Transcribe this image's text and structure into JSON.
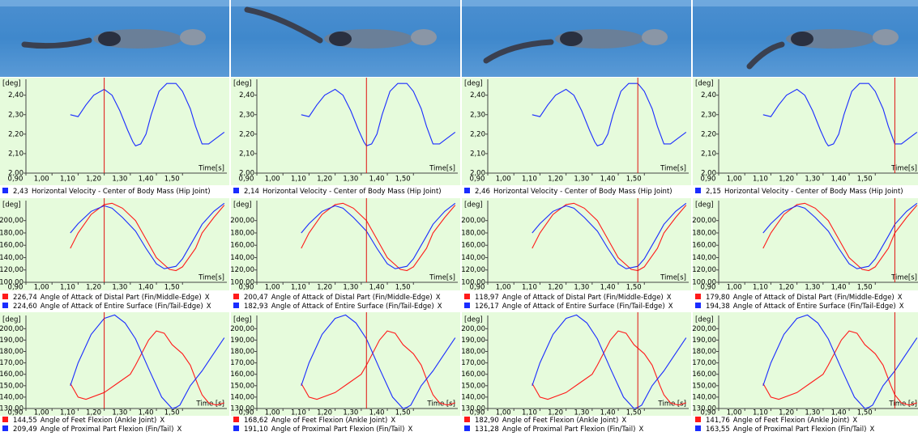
{
  "chart_data": [
    {
      "type": "line",
      "y_label": "[deg]",
      "x_label": "Time[s]",
      "xlim": [
        0.9,
        1.67
      ],
      "xticks": [
        {
          "value": 0.9,
          "label": "0,90"
        },
        {
          "value": 1.0,
          "label": "1,00"
        },
        {
          "value": 1.1,
          "label": "1,10"
        },
        {
          "value": 1.2,
          "label": "1,20"
        },
        {
          "value": 1.3,
          "label": "1,30"
        },
        {
          "value": 1.4,
          "label": "1,40"
        },
        {
          "value": 1.5,
          "label": "1,50"
        }
      ],
      "ylim": [
        2.0,
        2.49
      ],
      "yticks": [
        {
          "value": 2.0,
          "label": "2,00"
        },
        {
          "value": 2.1,
          "label": "2,10"
        },
        {
          "value": 2.2,
          "label": "2,20"
        },
        {
          "value": 2.3,
          "label": "2,30"
        },
        {
          "value": 2.4,
          "label": "2,40"
        }
      ],
      "cursor_x": [
        1.2,
        1.32,
        1.475,
        1.575
      ],
      "series": [
        {
          "name": "Horizontal Velocity - Center of Body Mass (Hip Joint)",
          "color": "#1a2cff",
          "x": [
            1.07,
            1.1,
            1.13,
            1.16,
            1.2,
            1.23,
            1.26,
            1.29,
            1.31,
            1.32,
            1.34,
            1.36,
            1.38,
            1.41,
            1.44,
            1.475,
            1.5,
            1.53,
            1.55,
            1.575,
            1.6,
            1.62,
            1.66
          ],
          "values": [
            2.3,
            2.29,
            2.35,
            2.4,
            2.43,
            2.4,
            2.32,
            2.22,
            2.16,
            2.14,
            2.15,
            2.2,
            2.3,
            2.42,
            2.46,
            2.46,
            2.42,
            2.33,
            2.24,
            2.15,
            2.15,
            2.17,
            2.21
          ],
          "cursor_values": [
            2.43,
            2.14,
            2.46,
            2.15
          ],
          "cursor_value_labels": [
            "2,43",
            "2,14",
            "2,46",
            "2,15"
          ]
        }
      ]
    },
    {
      "type": "line",
      "y_label": "[deg]",
      "x_label": "Time[s]",
      "close_label": "X",
      "xlim": [
        0.9,
        1.67
      ],
      "xticks": [
        {
          "value": 0.9,
          "label": "0,90"
        },
        {
          "value": 1.0,
          "label": "1,00"
        },
        {
          "value": 1.1,
          "label": "1,10"
        },
        {
          "value": 1.2,
          "label": "1,20"
        },
        {
          "value": 1.3,
          "label": "1,30"
        },
        {
          "value": 1.4,
          "label": "1,40"
        },
        {
          "value": 1.5,
          "label": "1,50"
        }
      ],
      "ylim": [
        100,
        235
      ],
      "yticks": [
        {
          "value": 100,
          "label": "100,00"
        },
        {
          "value": 120,
          "label": "120,00"
        },
        {
          "value": 140,
          "label": "140,00"
        },
        {
          "value": 160,
          "label": "160,00"
        },
        {
          "value": 180,
          "label": "180,00"
        },
        {
          "value": 200,
          "label": "200,00"
        }
      ],
      "cursor_x": [
        1.2,
        1.32,
        1.475,
        1.575
      ],
      "series": [
        {
          "name": "Angle of Attack of Distal Part (Fin/Middle-Edge)",
          "color": "#ff1a1a",
          "x": [
            1.07,
            1.1,
            1.15,
            1.2,
            1.23,
            1.27,
            1.32,
            1.36,
            1.4,
            1.45,
            1.475,
            1.5,
            1.55,
            1.575,
            1.62,
            1.66
          ],
          "values": [
            155,
            180,
            210,
            226,
            228,
            220,
            200,
            170,
            140,
            121,
            119,
            125,
            155,
            180,
            205,
            225
          ],
          "cursor_values": [
            226.74,
            200.47,
            118.97,
            179.8
          ],
          "cursor_value_labels": [
            "226,74",
            "200,47",
            "118,97",
            "179,80"
          ]
        },
        {
          "name": "Angle of Attack of Entire Surface (Fin/Tail-Edge)",
          "color": "#1a2cff",
          "x": [
            1.07,
            1.1,
            1.15,
            1.2,
            1.23,
            1.27,
            1.32,
            1.36,
            1.4,
            1.43,
            1.475,
            1.5,
            1.55,
            1.575,
            1.62,
            1.66
          ],
          "values": [
            180,
            195,
            215,
            224,
            220,
            205,
            183,
            155,
            130,
            122,
            126,
            138,
            175,
            194,
            215,
            228
          ],
          "cursor_values": [
            224.6,
            182.93,
            126.17,
            194.38
          ],
          "cursor_value_labels": [
            "224,60",
            "182,93",
            "126,17",
            "194,38"
          ]
        }
      ]
    },
    {
      "type": "line",
      "y_label": "[deg]",
      "x_label": "Time [s]",
      "close_label": "X",
      "xlim": [
        0.9,
        1.67
      ],
      "xticks": [
        {
          "value": 0.9,
          "label": "0,90"
        },
        {
          "value": 1.0,
          "label": "1,00"
        },
        {
          "value": 1.1,
          "label": "1,10"
        },
        {
          "value": 1.2,
          "label": "1,20"
        },
        {
          "value": 1.3,
          "label": "1,30"
        },
        {
          "value": 1.4,
          "label": "1,40"
        },
        {
          "value": 1.5,
          "label": "1,50"
        }
      ],
      "ylim": [
        130,
        213
      ],
      "yticks": [
        {
          "value": 130,
          "label": "130,00"
        },
        {
          "value": 140,
          "label": "140,00"
        },
        {
          "value": 150,
          "label": "150,00"
        },
        {
          "value": 160,
          "label": "160,00"
        },
        {
          "value": 170,
          "label": "170,00"
        },
        {
          "value": 180,
          "label": "180,00"
        },
        {
          "value": 190,
          "label": "190,00"
        },
        {
          "value": 200,
          "label": "200,00"
        }
      ],
      "cursor_x": [
        1.2,
        1.32,
        1.475,
        1.575
      ],
      "series": [
        {
          "name": "Angle of Feet Flexion (Ankle Joint)",
          "color": "#ff1a1a",
          "x": [
            1.07,
            1.1,
            1.13,
            1.2,
            1.25,
            1.3,
            1.32,
            1.37,
            1.4,
            1.43,
            1.46,
            1.475,
            1.5,
            1.53,
            1.56,
            1.575,
            1.6,
            1.63,
            1.66
          ],
          "values": [
            152,
            140,
            138,
            144,
            152,
            160,
            168,
            190,
            198,
            196,
            186,
            183,
            178,
            168,
            150,
            142,
            135,
            133,
            135
          ],
          "cursor_values": [
            144.55,
            168.62,
            182.9,
            141.76
          ],
          "cursor_value_labels": [
            "144,55",
            "168,62",
            "182,90",
            "141,76"
          ]
        },
        {
          "name": "Angle of Proximal Part Flexion (Fin/Tail)",
          "color": "#1a2cff",
          "x": [
            1.07,
            1.1,
            1.15,
            1.2,
            1.24,
            1.28,
            1.32,
            1.37,
            1.42,
            1.46,
            1.475,
            1.49,
            1.53,
            1.575,
            1.61,
            1.66
          ],
          "values": [
            150,
            170,
            195,
            209,
            212,
            205,
            191,
            165,
            140,
            130,
            131,
            133,
            150,
            163,
            175,
            192
          ],
          "cursor_values": [
            209.49,
            191.1,
            131.28,
            163.55
          ],
          "cursor_value_labels": [
            "209,49",
            "191,10",
            "131,28",
            "163,55"
          ]
        }
      ]
    }
  ]
}
